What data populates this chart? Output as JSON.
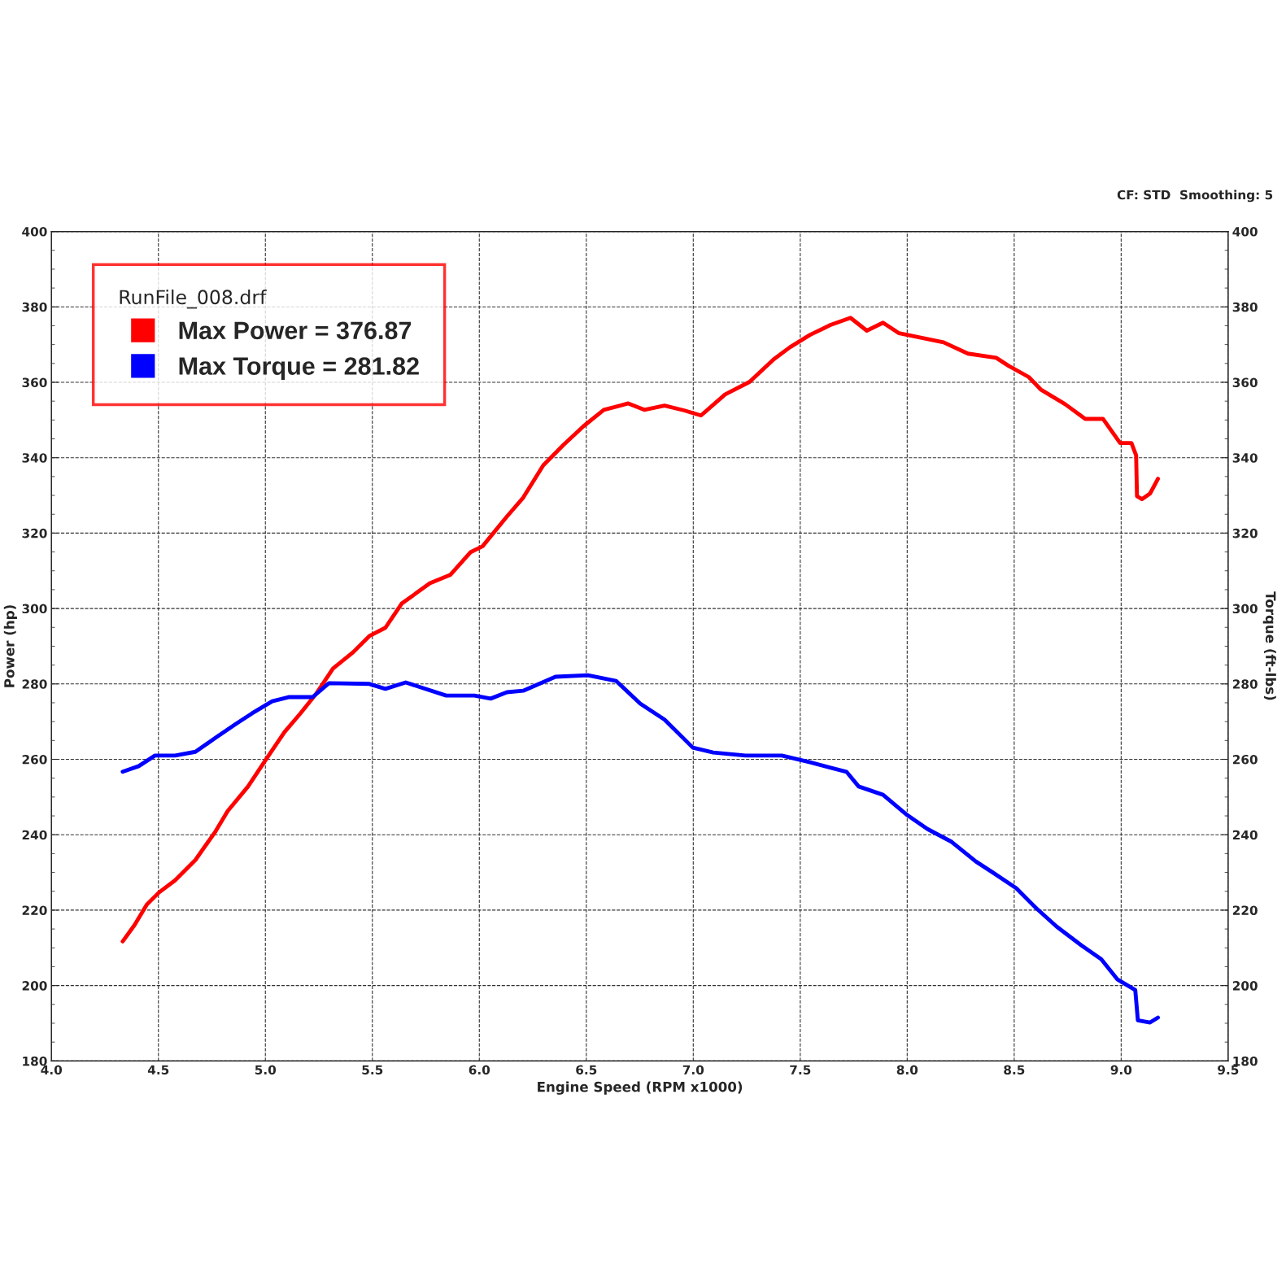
{
  "chart_data": {
    "type": "line",
    "xlabel": "Engine Speed (RPM x1000)",
    "ylabel": "Power (hp)",
    "y2label": "Torque (ft-lbs)",
    "legend_title": "RunFile_008.drf",
    "annotations": [
      "CF: STD  Smoothing: 5"
    ],
    "xlim": [
      4.0,
      9.5
    ],
    "xticks": [
      {
        "value": 4.0,
        "label": "4.0"
      },
      4.5,
      {
        "value": 5.0,
        "label": "5.0"
      },
      5.5,
      {
        "value": 6.0,
        "label": "6.0"
      },
      6.5,
      {
        "value": 7.0,
        "label": "7.0"
      },
      7.5,
      {
        "value": 8.0,
        "label": "8.0"
      },
      8.5,
      {
        "value": 9.0,
        "label": "9.0"
      },
      9.5
    ],
    "ylim": [
      180,
      400
    ],
    "yticks": [
      180,
      200,
      220,
      240,
      260,
      280,
      300,
      320,
      340,
      360,
      380,
      400
    ],
    "y2lim": [
      180,
      400
    ],
    "y2ticks": [
      180,
      200,
      220,
      240,
      260,
      280,
      300,
      320,
      340,
      360,
      380,
      400
    ],
    "grid": true,
    "legend": "top left",
    "line_style": "solid",
    "marker": "none",
    "series": [
      {
        "name": "Max Power = 376.87",
        "color": "#ff0000",
        "x": [
          4.333,
          4.389,
          4.446,
          4.503,
          4.578,
          4.673,
          4.767,
          4.824,
          4.919,
          4.994,
          5.089,
          5.164,
          5.24,
          5.316,
          5.41,
          5.486,
          5.561,
          5.637,
          5.769,
          5.864,
          5.958,
          6.015,
          6.129,
          6.205,
          6.299,
          6.393,
          6.488,
          6.582,
          6.696,
          6.771,
          6.866,
          6.96,
          7.036,
          7.149,
          7.263,
          7.376,
          7.452,
          7.546,
          7.641,
          7.735,
          7.811,
          7.887,
          7.962,
          8.17,
          8.284,
          8.416,
          8.473,
          8.568,
          8.624,
          8.738,
          8.832,
          8.915,
          8.995,
          9.048,
          9.07,
          9.074,
          9.097,
          9.135,
          9.172
        ],
        "values": [
          211.7,
          216.1,
          221.5,
          224.7,
          227.9,
          233.3,
          240.9,
          246.3,
          252.8,
          259.2,
          267.2,
          272.2,
          277.6,
          284.1,
          288.4,
          292.7,
          294.9,
          301.3,
          306.7,
          308.9,
          314.9,
          316.5,
          324.4,
          329.4,
          338.0,
          343.4,
          348.4,
          352.7,
          354.4,
          352.7,
          353.8,
          352.5,
          351.2,
          356.8,
          360.1,
          366.1,
          369.3,
          372.6,
          375.2,
          377.1,
          373.7,
          375.8,
          373.0,
          370.6,
          367.6,
          366.5,
          364.4,
          361.4,
          358.1,
          354.2,
          350.3,
          350.3,
          343.9,
          343.9,
          340.6,
          329.8,
          329.0,
          330.5,
          334.4
        ]
      },
      {
        "name": "Max Torque = 281.82",
        "color": "#0000ff",
        "x": [
          4.333,
          4.408,
          4.484,
          4.578,
          4.673,
          4.767,
          4.862,
          4.938,
          5.032,
          5.108,
          5.221,
          5.297,
          5.486,
          5.561,
          5.656,
          5.845,
          5.977,
          6.053,
          6.129,
          6.205,
          6.356,
          6.507,
          6.639,
          6.752,
          6.866,
          6.998,
          7.093,
          7.244,
          7.414,
          7.546,
          7.716,
          7.773,
          7.887,
          8.0,
          8.095,
          8.208,
          8.321,
          8.397,
          8.51,
          8.605,
          8.699,
          8.813,
          8.907,
          8.983,
          9.066,
          9.078,
          9.135,
          9.172
        ],
        "values": [
          256.7,
          258.2,
          261.0,
          261.0,
          262.0,
          265.7,
          269.4,
          272.2,
          275.4,
          276.5,
          276.5,
          280.2,
          280.0,
          278.7,
          280.4,
          276.9,
          276.9,
          276.1,
          277.8,
          278.2,
          281.9,
          282.3,
          280.8,
          274.8,
          270.5,
          263.1,
          261.8,
          261.0,
          261.0,
          259.2,
          256.7,
          252.8,
          250.6,
          245.2,
          241.5,
          238.1,
          232.9,
          230.1,
          225.8,
          220.4,
          215.6,
          210.7,
          207.0,
          201.6,
          198.8,
          190.8,
          190.2,
          191.5
        ]
      }
    ]
  }
}
